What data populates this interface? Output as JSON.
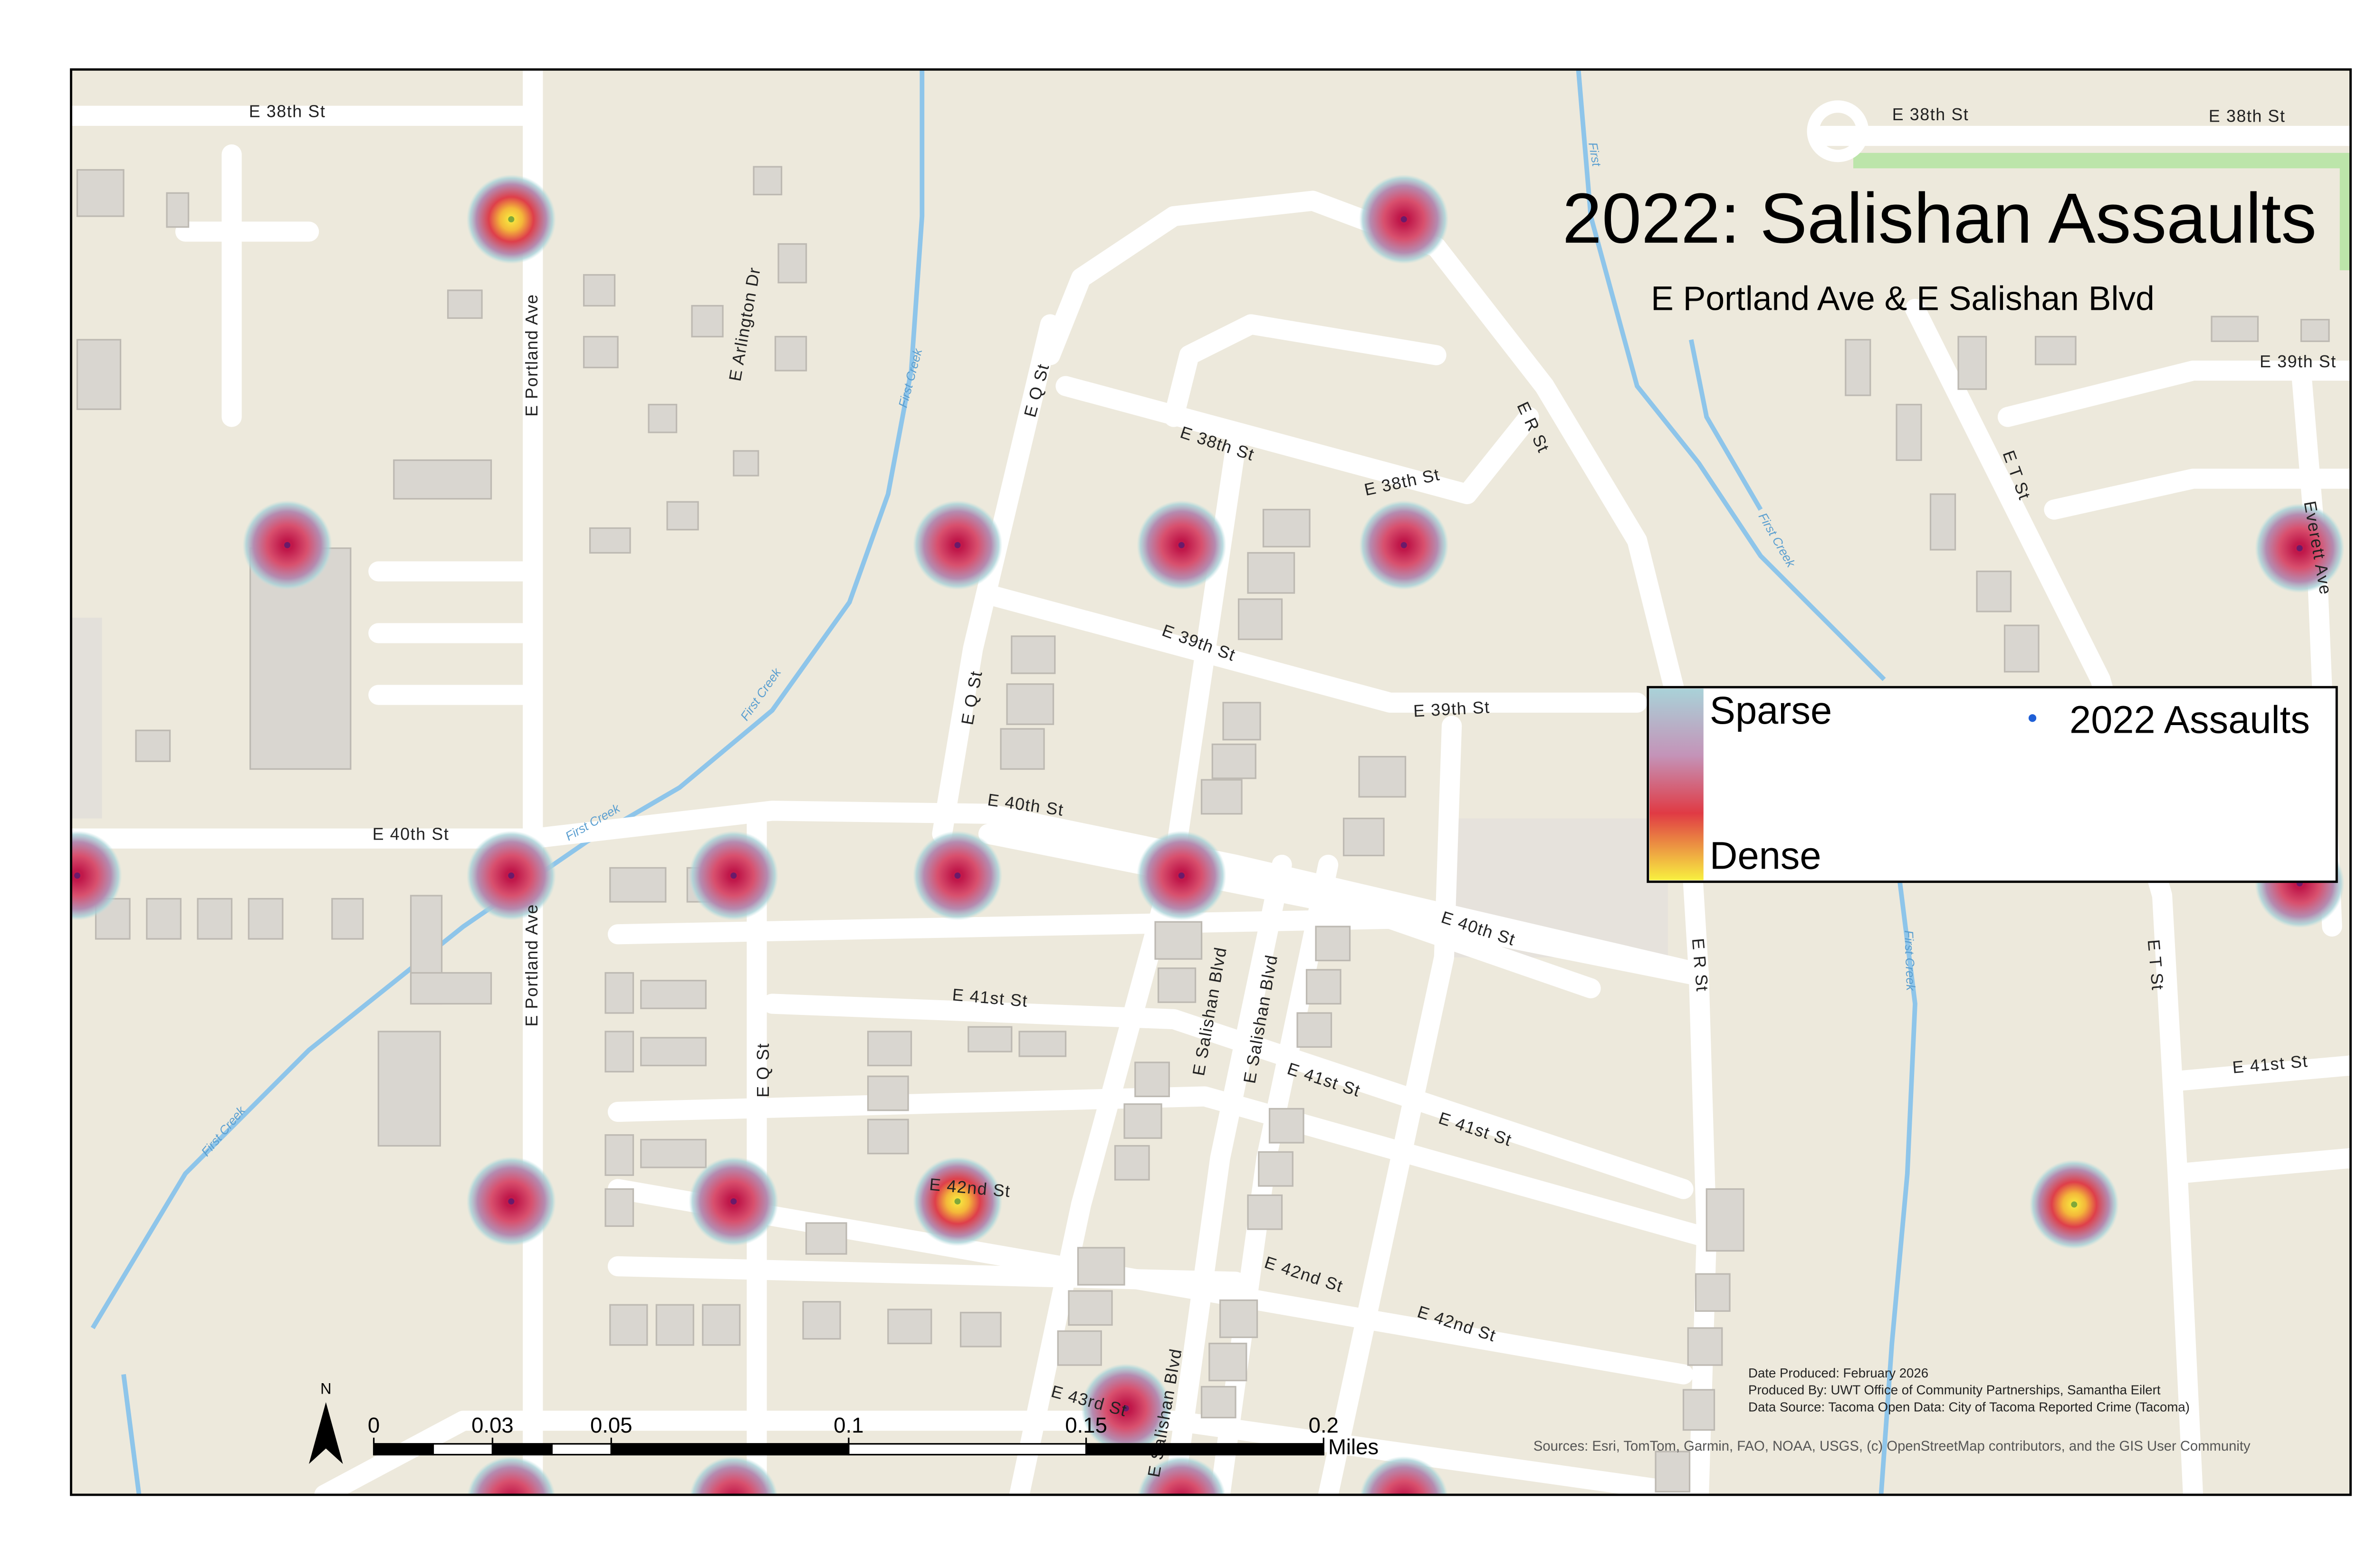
{
  "title": "2022: Salishan Assaults",
  "subtitle": "E Portland Ave & E Salishan Blvd",
  "legend": {
    "sparse": "Sparse",
    "dense": "Dense",
    "points": "2022 Assaults"
  },
  "street_labels": [
    "E 38th St",
    "E Portland Ave",
    "E Arlington Dr",
    "E Q St",
    "E 38th St",
    "E 38th St",
    "E R St",
    "E 38th St",
    "E 38th St",
    "E 39th St",
    "E T St",
    "Everett Ave",
    "E 39th St",
    "E Q St",
    "E 39th St",
    "E 40th St",
    "E 40th St",
    "E 40th St",
    "E R St",
    "E Portland Ave",
    "E 41st St",
    "E Q St",
    "E Salishan Blvd",
    "E Salishan Blvd",
    "E 41st St",
    "E 41st St",
    "E T St",
    "E 41st St",
    "E 42nd St",
    "E 42nd St",
    "E 42nd St",
    "E 43rd St",
    "E Salishan Blvd"
  ],
  "creek_labels": [
    "First Creek",
    "First Creek",
    "First Creek",
    "First Creek",
    "First Creek",
    "First",
    "First Creek"
  ],
  "scale_bar": {
    "north": "N",
    "units": "Miles",
    "ticks": [
      0,
      {
        "value": 0.025,
        "label": "0.03"
      },
      0.05,
      0.1,
      0.15,
      0.2
    ]
  },
  "credits": [
    "Date Produced: February 2026",
    "Produced By: UWT Office of Community Partnerships, Samantha Eilert",
    "Data Source: Tacoma Open Data: City of Tacoma Reported Crime (Tacoma)"
  ],
  "sources": "Sources: Esri, TomTom, Garmin, FAO, NOAA, USGS, (c) OpenStreetMap contributors, and the GIS User Community"
}
